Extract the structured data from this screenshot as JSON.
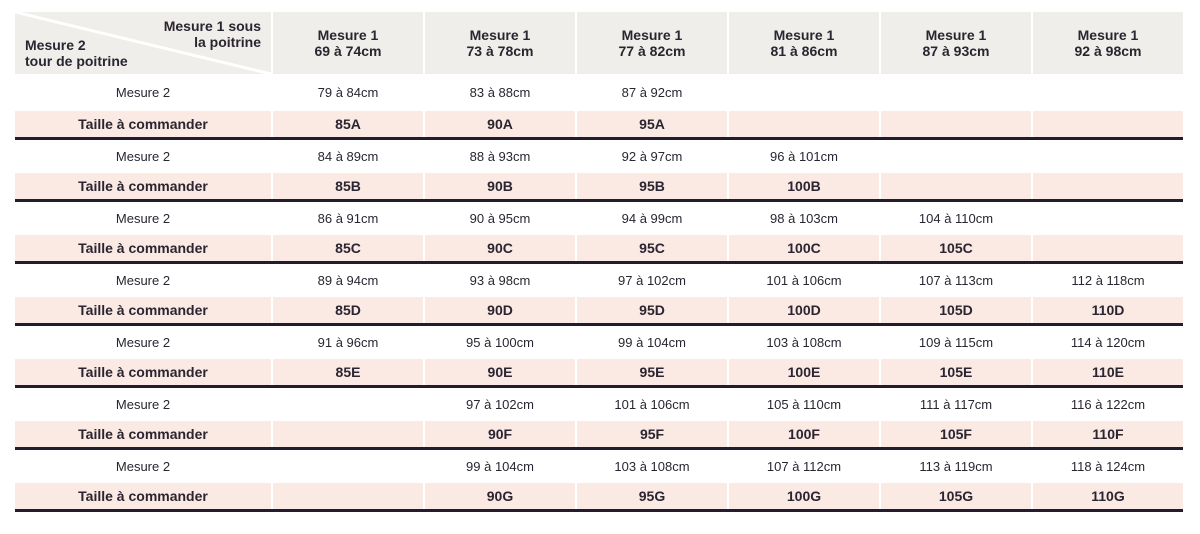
{
  "header": {
    "corner_top": [
      "Mesure 1 sous",
      "la poitrine"
    ],
    "corner_bottom": [
      "Mesure 2",
      "tour de poitrine"
    ],
    "columns": [
      [
        "Mesure 1",
        "69 à 74cm"
      ],
      [
        "Mesure 1",
        "73 à 78cm"
      ],
      [
        "Mesure 1",
        "77 à 82cm"
      ],
      [
        "Mesure 1",
        "81 à 86cm"
      ],
      [
        "Mesure 1",
        "87 à 93cm"
      ],
      [
        "Mesure 1",
        "92 à 98cm"
      ]
    ]
  },
  "measure_label": "Mesure 2",
  "size_label": "Taille à commander",
  "groups": [
    {
      "measures": [
        "79 à 84cm",
        "83 à 88cm",
        "87 à 92cm",
        "",
        "",
        ""
      ],
      "sizes": [
        "85A",
        "90A",
        "95A",
        "",
        "",
        ""
      ]
    },
    {
      "measures": [
        "84 à 89cm",
        "88 à 93cm",
        "92 à 97cm",
        "96 à 101cm",
        "",
        ""
      ],
      "sizes": [
        "85B",
        "90B",
        "95B",
        "100B",
        "",
        ""
      ]
    },
    {
      "measures": [
        "86 à 91cm",
        "90 à 95cm",
        "94 à 99cm",
        "98 à 103cm",
        "104 à 110cm",
        ""
      ],
      "sizes": [
        "85C",
        "90C",
        "95C",
        "100C",
        "105C",
        ""
      ]
    },
    {
      "measures": [
        "89 à 94cm",
        "93 à 98cm",
        "97 à 102cm",
        "101 à 106cm",
        "107 à 113cm",
        "112 à 118cm"
      ],
      "sizes": [
        "85D",
        "90D",
        "95D",
        "100D",
        "105D",
        "110D"
      ]
    },
    {
      "measures": [
        "91 à 96cm",
        "95 à 100cm",
        "99 à 104cm",
        "103 à 108cm",
        "109 à 115cm",
        "114 à 120cm"
      ],
      "sizes": [
        "85E",
        "90E",
        "95E",
        "100E",
        "105E",
        "110E"
      ]
    },
    {
      "measures": [
        "",
        "97 à 102cm",
        "101 à 106cm",
        "105 à 110cm",
        "111 à 117cm",
        "116 à 122cm"
      ],
      "sizes": [
        "",
        "90F",
        "95F",
        "100F",
        "105F",
        "110F"
      ]
    },
    {
      "measures": [
        "",
        "99 à 104cm",
        "103 à 108cm",
        "107 à 112cm",
        "113 à 119cm",
        "118 à 124cm"
      ],
      "sizes": [
        "",
        "90G",
        "95G",
        "100G",
        "105G",
        "110G"
      ]
    }
  ],
  "colors": {
    "header_bg": "#f0eeea",
    "size_row_bg": "#fbe9e4",
    "divider": "#231c2e"
  }
}
